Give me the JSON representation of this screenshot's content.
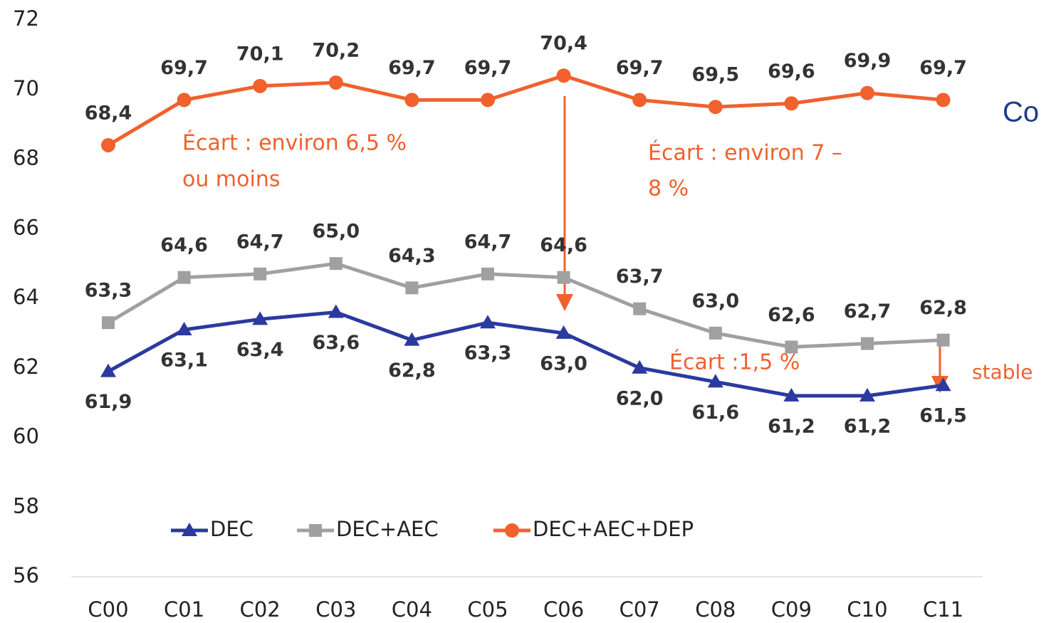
{
  "chart_data": {
    "type": "line",
    "categories": [
      "C00",
      "C01",
      "C02",
      "C03",
      "C04",
      "C05",
      "C06",
      "C07",
      "C08",
      "C09",
      "C10",
      "C11"
    ],
    "ylim": [
      56,
      72
    ],
    "yticks": [
      56,
      58,
      60,
      62,
      64,
      66,
      68,
      70,
      72
    ],
    "series": [
      {
        "name": "DEC",
        "color": "#2b3a9e",
        "marker": "triangle",
        "values": [
          61.9,
          63.1,
          63.4,
          63.6,
          62.8,
          63.3,
          63.0,
          62.0,
          61.6,
          61.2,
          61.2,
          61.5
        ],
        "value_labels": [
          "61,9",
          "63,1",
          "63,4",
          "63,6",
          "62,8",
          "63,3",
          "63,0",
          "62,0",
          "61,6",
          "61,2",
          "61,2",
          "61,5"
        ]
      },
      {
        "name": "DEC+AEC",
        "color": "#a0a0a0",
        "marker": "square",
        "values": [
          63.3,
          64.6,
          64.7,
          65.0,
          64.3,
          64.7,
          64.6,
          63.7,
          63.0,
          62.6,
          62.7,
          62.8
        ],
        "value_labels": [
          "63,3",
          "64,6",
          "64,7",
          "65,0",
          "64,3",
          "64,7",
          "64,6",
          "63,7",
          "63,0",
          "62,6",
          "62,7",
          "62,8"
        ]
      },
      {
        "name": "DEC+AEC+DEP",
        "color": "#f0612d",
        "marker": "circle",
        "values": [
          68.4,
          69.7,
          70.1,
          70.2,
          69.7,
          69.7,
          70.4,
          69.7,
          69.5,
          69.6,
          69.9,
          69.7
        ],
        "value_labels": [
          "68,4",
          "69,7",
          "70,1",
          "70,2",
          "69,7",
          "69,7",
          "70,4",
          "69,7",
          "69,5",
          "69,6",
          "69,9",
          "69,7"
        ]
      }
    ],
    "annotations": [
      {
        "lines": [
          "Écart : environ 6,5 %",
          "ou moins"
        ]
      },
      {
        "lines": [
          "Écart : environ 7 –",
          "8  %"
        ]
      },
      {
        "lines": [
          "Écart :1,5 %"
        ]
      },
      {
        "lines": [
          "stable"
        ]
      },
      {
        "lines": [
          "Co"
        ]
      }
    ]
  }
}
